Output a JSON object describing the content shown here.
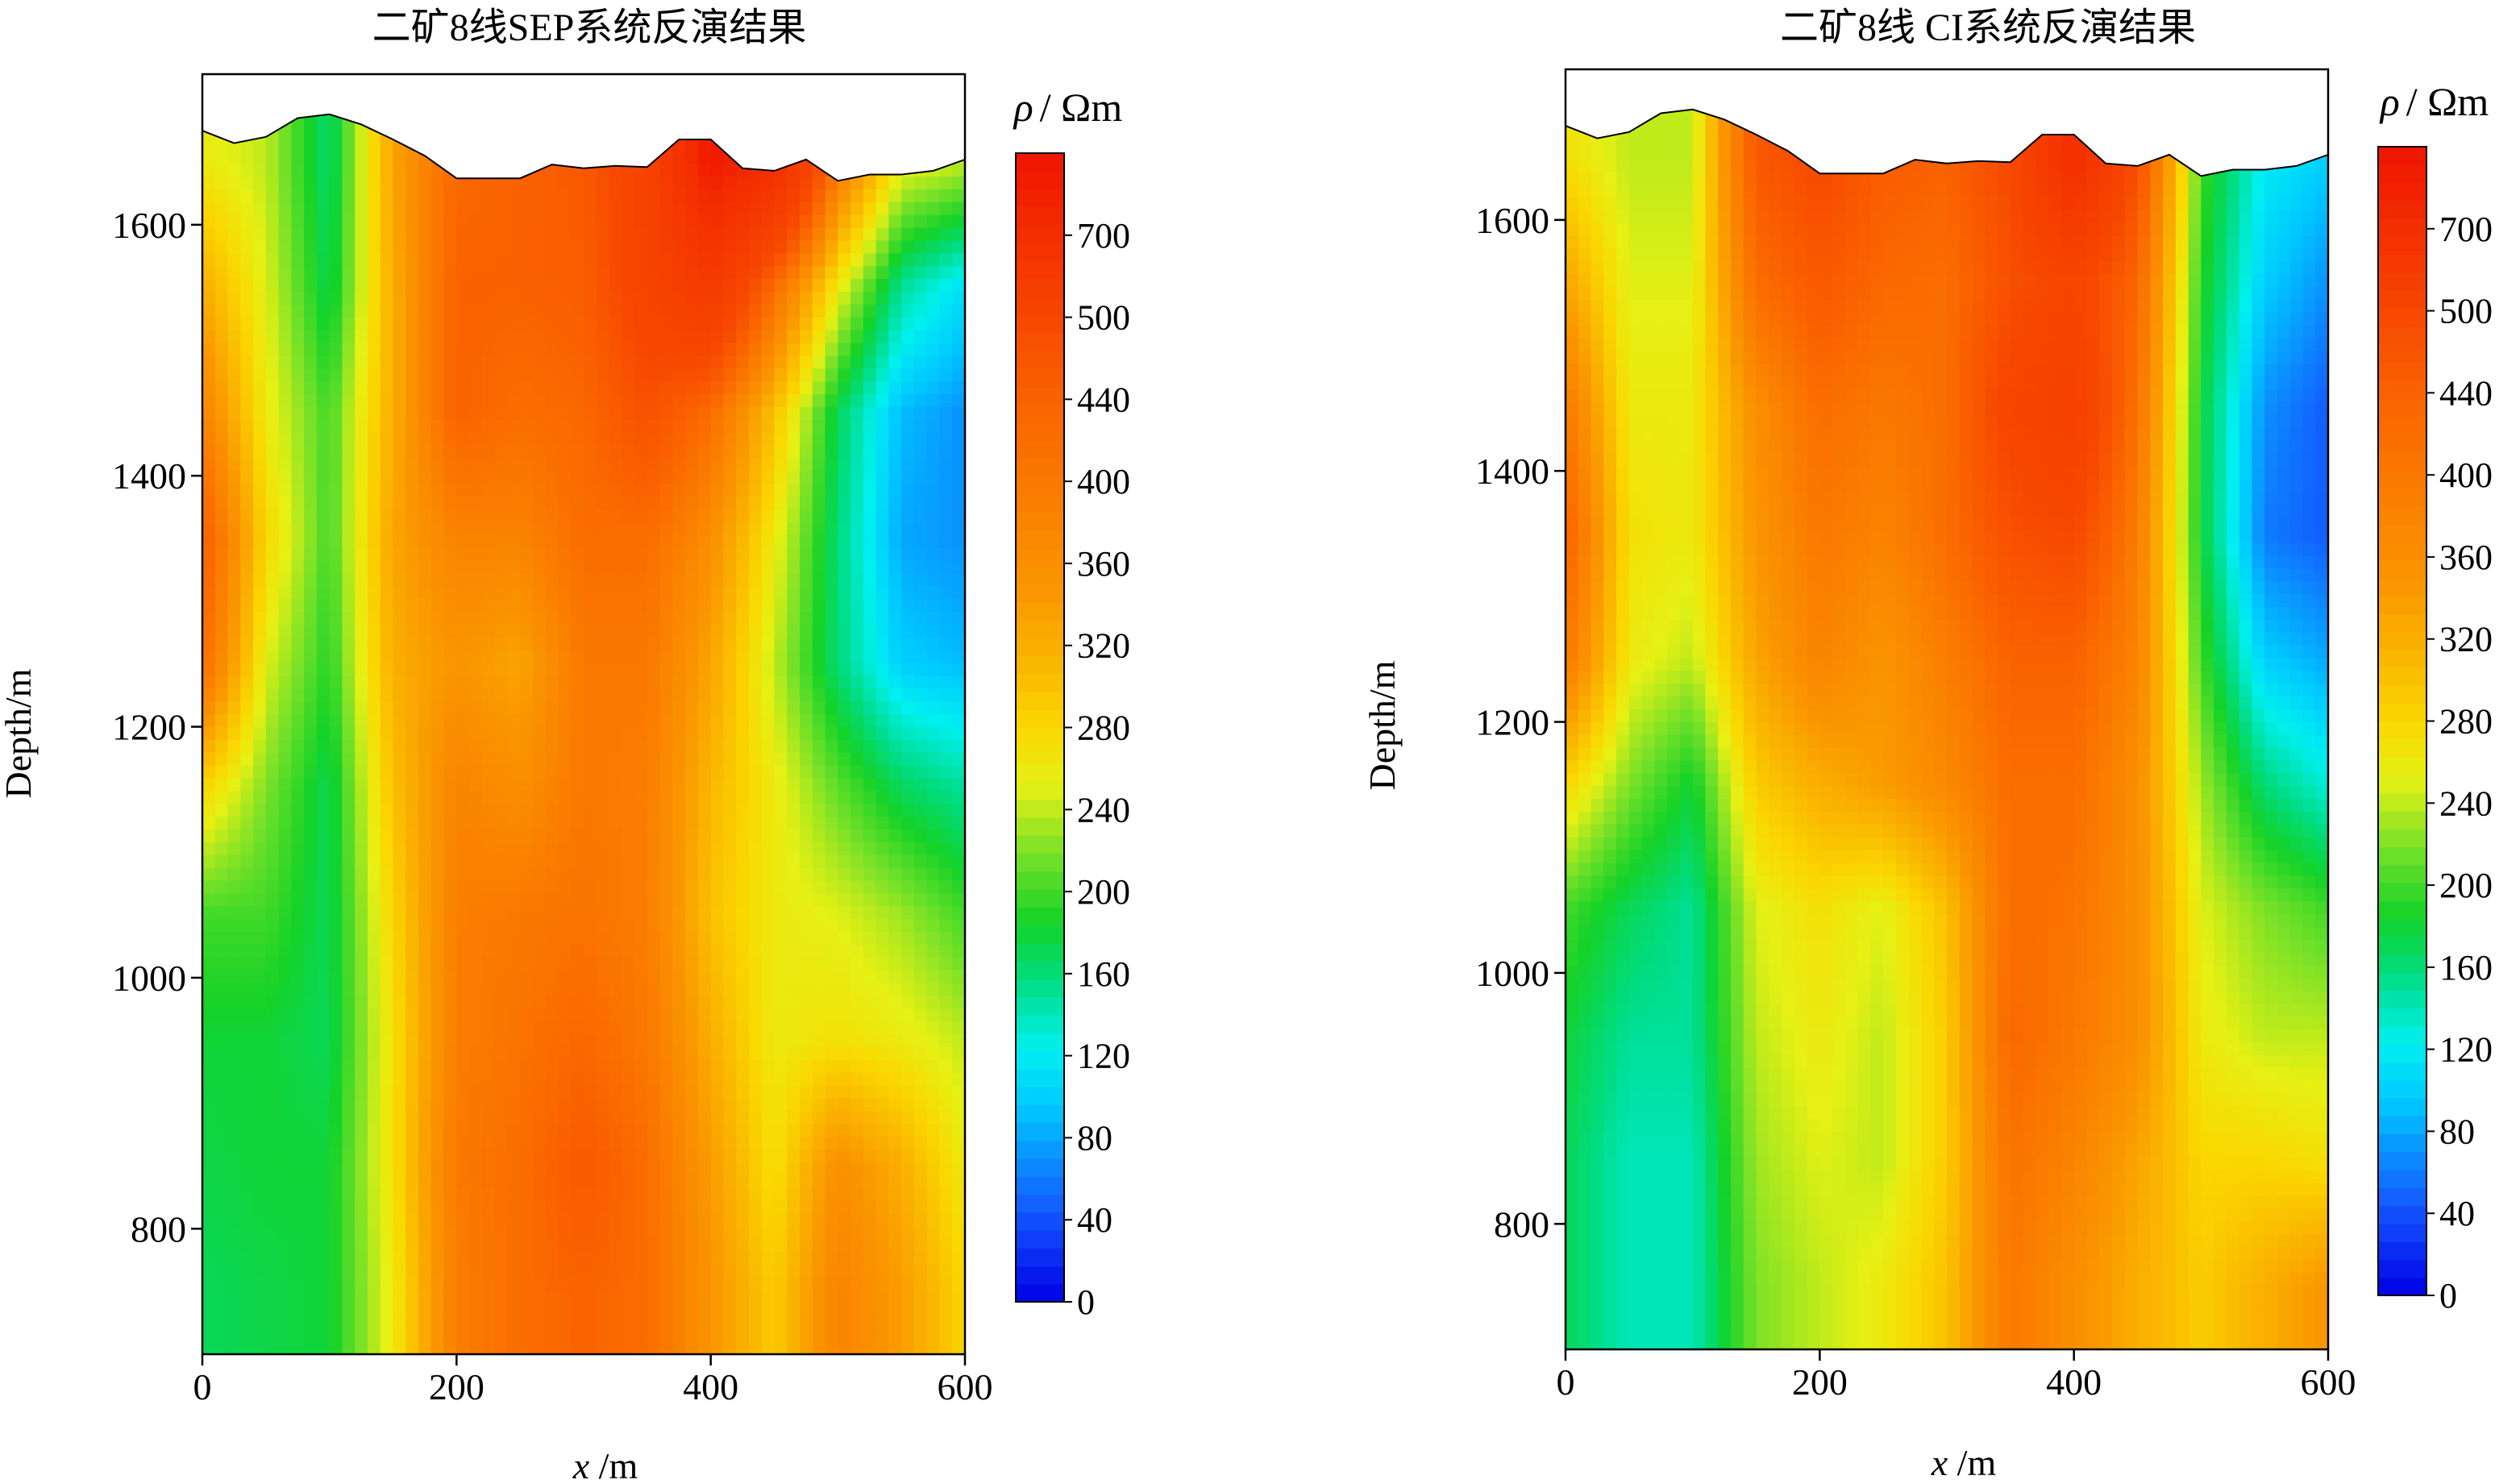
{
  "chart_data": [
    {
      "type": "heatmap",
      "title": "二矿8线SEP系统反演结果",
      "xlabel": "x /m",
      "ylabel": "Depth/m",
      "xlim": [
        0,
        600
      ],
      "ylim": [
        700,
        1720
      ],
      "xticks": [
        "0",
        "200",
        "400",
        "600"
      ],
      "yticks": [
        "800",
        "1000",
        "1200",
        "1400",
        "1600"
      ],
      "colorbar": {
        "label_symbol": "ρ",
        "label_unit": "/ Ωm",
        "range": [
          0,
          800
        ],
        "ticks": [
          "0",
          "40",
          "80",
          "120",
          "160",
          "200",
          "240",
          "280",
          "320",
          "360",
          "400",
          "440",
          "500",
          "700"
        ]
      },
      "surface_profile": {
        "x": [
          0,
          25,
          50,
          75,
          100,
          125,
          150,
          175,
          200,
          225,
          250,
          275,
          300,
          325,
          350,
          375,
          400,
          425,
          450,
          475,
          500,
          525,
          550,
          575,
          600
        ],
        "depth": [
          1675,
          1665,
          1670,
          1685,
          1688,
          1680,
          1668,
          1655,
          1637,
          1637,
          1637,
          1648,
          1645,
          1647,
          1646,
          1668,
          1668,
          1645,
          1643,
          1652,
          1635,
          1640,
          1640,
          1643,
          1652
        ]
      },
      "resistivity_grid": {
        "x": [
          0,
          50,
          100,
          150,
          200,
          250,
          300,
          350,
          400,
          450,
          500,
          550,
          600
        ],
        "depth": [
          1650,
          1550,
          1450,
          1350,
          1250,
          1150,
          1050,
          950,
          850,
          750
        ],
        "values": [
          [
            260,
            240,
            160,
            330,
            430,
            440,
            460,
            540,
            780,
            700,
            400,
            260,
            240
          ],
          [
            320,
            250,
            170,
            320,
            440,
            440,
            450,
            530,
            600,
            420,
            260,
            150,
            110
          ],
          [
            380,
            260,
            200,
            320,
            440,
            420,
            430,
            480,
            420,
            300,
            170,
            90,
            70
          ],
          [
            450,
            280,
            200,
            330,
            380,
            380,
            420,
            420,
            360,
            260,
            160,
            80,
            70
          ],
          [
            420,
            250,
            190,
            320,
            350,
            330,
            400,
            400,
            330,
            240,
            160,
            100,
            90
          ],
          [
            280,
            220,
            170,
            300,
            380,
            360,
            400,
            390,
            310,
            260,
            210,
            170,
            150
          ],
          [
            200,
            200,
            170,
            280,
            390,
            400,
            410,
            390,
            300,
            260,
            250,
            230,
            200
          ],
          [
            180,
            180,
            170,
            270,
            390,
            410,
            430,
            400,
            320,
            260,
            270,
            260,
            240
          ],
          [
            175,
            180,
            180,
            270,
            400,
            420,
            460,
            420,
            340,
            270,
            360,
            320,
            260
          ],
          [
            170,
            175,
            180,
            260,
            390,
            420,
            440,
            420,
            350,
            290,
            380,
            340,
            280
          ]
        ]
      }
    },
    {
      "type": "heatmap",
      "title": "二矿8线 CI系统反演结果",
      "xlabel": "x /m",
      "ylabel": "Depth/m",
      "xlim": [
        0,
        600
      ],
      "ylim": [
        700,
        1720
      ],
      "xticks": [
        "0",
        "200",
        "400",
        "600"
      ],
      "yticks": [
        "800",
        "1000",
        "1200",
        "1400",
        "1600"
      ],
      "colorbar": {
        "label_symbol": "ρ",
        "label_unit": "/ Ωm",
        "range": [
          0,
          800
        ],
        "ticks": [
          "0",
          "40",
          "80",
          "120",
          "160",
          "200",
          "240",
          "280",
          "320",
          "360",
          "400",
          "440",
          "500",
          "700"
        ]
      },
      "surface_profile": {
        "x": [
          0,
          25,
          50,
          75,
          100,
          125,
          150,
          175,
          200,
          225,
          250,
          275,
          300,
          325,
          350,
          375,
          400,
          425,
          450,
          475,
          500,
          525,
          550,
          575,
          600
        ],
        "depth": [
          1675,
          1665,
          1670,
          1685,
          1688,
          1680,
          1668,
          1655,
          1637,
          1637,
          1637,
          1648,
          1645,
          1647,
          1646,
          1668,
          1668,
          1645,
          1643,
          1652,
          1635,
          1640,
          1640,
          1643,
          1652
        ]
      },
      "resistivity_grid": {
        "x": [
          0,
          50,
          100,
          150,
          200,
          250,
          300,
          350,
          400,
          450,
          500,
          550,
          600
        ],
        "depth": [
          1650,
          1550,
          1450,
          1350,
          1250,
          1150,
          1050,
          950,
          850,
          750
        ],
        "values": [
          [
            270,
            240,
            240,
            460,
            500,
            450,
            440,
            500,
            700,
            480,
            200,
            120,
            100
          ],
          [
            330,
            250,
            250,
            420,
            460,
            430,
            420,
            480,
            520,
            430,
            190,
            100,
            70
          ],
          [
            400,
            260,
            260,
            360,
            420,
            400,
            420,
            520,
            560,
            410,
            180,
            70,
            45
          ],
          [
            440,
            270,
            260,
            350,
            400,
            380,
            420,
            480,
            500,
            390,
            180,
            60,
            45
          ],
          [
            400,
            260,
            240,
            330,
            380,
            350,
            390,
            440,
            440,
            380,
            200,
            100,
            80
          ],
          [
            280,
            220,
            180,
            290,
            320,
            340,
            370,
            420,
            420,
            360,
            230,
            160,
            130
          ],
          [
            200,
            170,
            150,
            250,
            270,
            250,
            300,
            420,
            410,
            360,
            250,
            220,
            200
          ],
          [
            180,
            150,
            150,
            240,
            260,
            240,
            290,
            430,
            400,
            360,
            260,
            240,
            240
          ],
          [
            170,
            140,
            140,
            230,
            250,
            240,
            290,
            410,
            380,
            330,
            280,
            280,
            270
          ],
          [
            170,
            140,
            140,
            220,
            240,
            260,
            300,
            400,
            360,
            320,
            290,
            320,
            350
          ]
        ]
      }
    }
  ]
}
